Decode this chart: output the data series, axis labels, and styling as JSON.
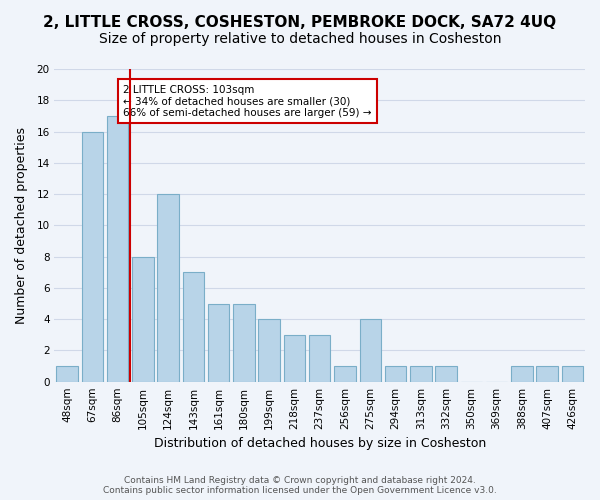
{
  "title": "2, LITTLE CROSS, COSHESTON, PEMBROKE DOCK, SA72 4UQ",
  "subtitle": "Size of property relative to detached houses in Cosheston",
  "xlabel": "Distribution of detached houses by size in Cosheston",
  "ylabel": "Number of detached properties",
  "footer_line1": "Contains HM Land Registry data © Crown copyright and database right 2024.",
  "footer_line2": "Contains public sector information licensed under the Open Government Licence v3.0.",
  "bin_labels": [
    "48sqm",
    "67sqm",
    "86sqm",
    "105sqm",
    "124sqm",
    "143sqm",
    "161sqm",
    "180sqm",
    "199sqm",
    "218sqm",
    "237sqm",
    "256sqm",
    "275sqm",
    "294sqm",
    "313sqm",
    "332sqm",
    "350sqm",
    "369sqm",
    "388sqm",
    "407sqm",
    "426sqm"
  ],
  "bar_values": [
    1,
    16,
    17,
    8,
    12,
    7,
    5,
    5,
    4,
    3,
    3,
    1,
    4,
    1,
    1,
    1,
    0,
    0,
    1,
    1,
    1
  ],
  "bar_color": "#b8d4e8",
  "bar_edge_color": "#7aaec8",
  "vline_x": 2.5,
  "highlight_annotation": "2 LITTLE CROSS: 103sqm",
  "annotation_smaller": "← 34% of detached houses are smaller (30)",
  "annotation_larger": "66% of semi-detached houses are larger (59) →",
  "annotation_box_color": "#ffffff",
  "annotation_box_edge": "#cc0000",
  "vline_color": "#cc0000",
  "ylim": [
    0,
    20
  ],
  "yticks": [
    0,
    2,
    4,
    6,
    8,
    10,
    12,
    14,
    16,
    18,
    20
  ],
  "grid_color": "#d0d8e8",
  "background_color": "#f0f4fa",
  "title_fontsize": 11,
  "subtitle_fontsize": 10,
  "axis_label_fontsize": 9,
  "tick_fontsize": 7.5
}
